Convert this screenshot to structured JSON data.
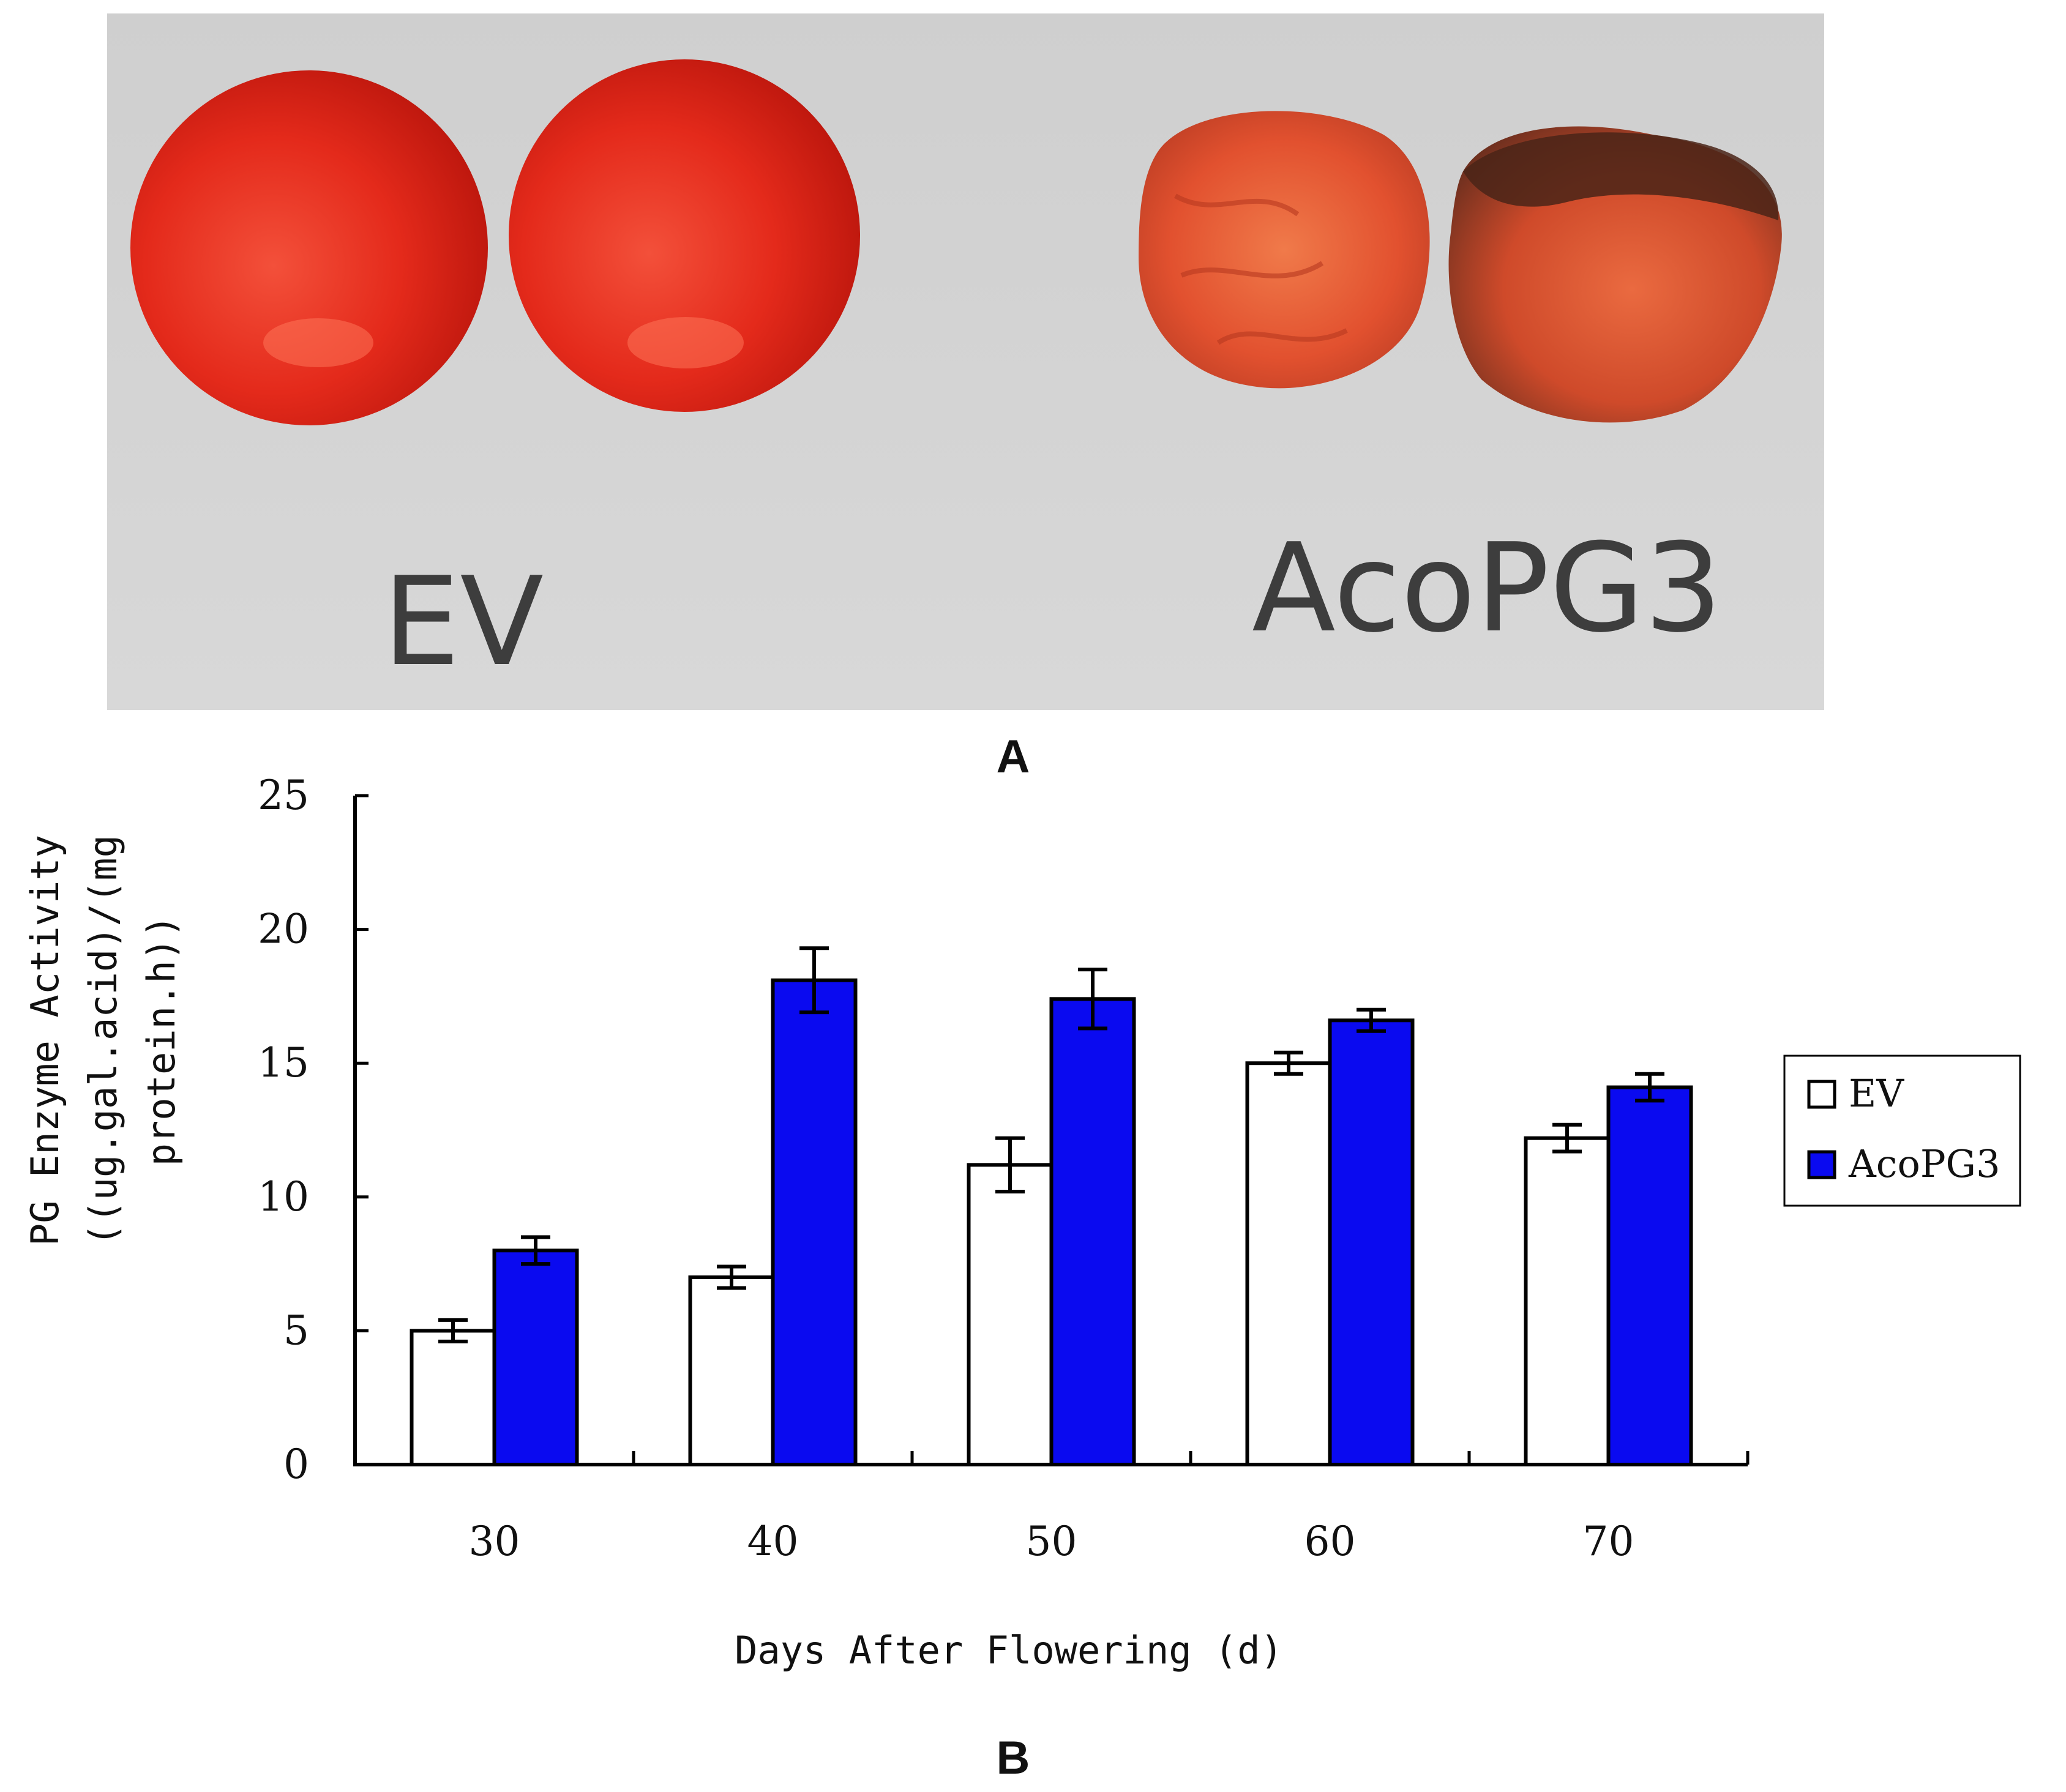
{
  "panel_a": {
    "label": "A",
    "handwritten_labels": {
      "left": "EV",
      "right": "AcoPG3"
    }
  },
  "panel_b": {
    "label": "B"
  },
  "colors": {
    "ev_fill": "#ffffff",
    "acopg3_fill": "#0a0af0",
    "tomato_fresh": "#e8281a",
    "tomato_rotten": "#e0502e",
    "photo_bg": "#d6d6d6"
  },
  "chart_data": {
    "type": "bar",
    "title": "",
    "xlabel": "Days After Flowering (d)",
    "ylabel_lines": [
      "PG Enzyme Activity",
      "((ug.gal.acid)/(mg",
      "protein.h))"
    ],
    "categories": [
      "30",
      "40",
      "50",
      "60",
      "70"
    ],
    "ylim": [
      0,
      25
    ],
    "yticks": [
      0,
      5,
      10,
      15,
      20,
      25
    ],
    "legend_position": "right",
    "grid": false,
    "series": [
      {
        "name": "EV",
        "values": [
          5.0,
          7.0,
          11.2,
          15.0,
          12.2
        ],
        "errors": [
          0.4,
          0.4,
          1.0,
          0.4,
          0.5
        ]
      },
      {
        "name": "AcoPG3",
        "values": [
          8.0,
          18.1,
          17.4,
          16.6,
          14.1
        ],
        "errors": [
          0.5,
          1.2,
          1.1,
          0.4,
          0.5
        ]
      }
    ]
  }
}
